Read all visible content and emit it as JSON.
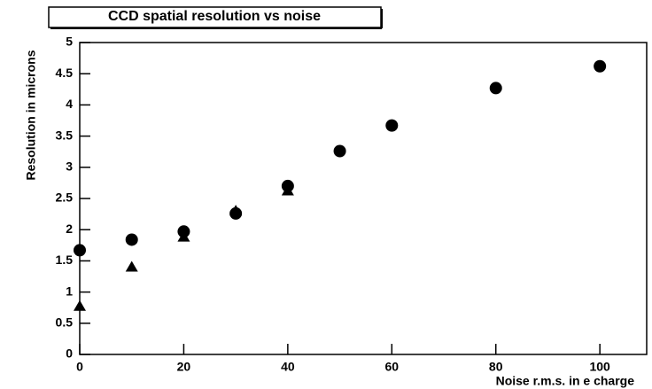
{
  "chart_data": {
    "type": "scatter",
    "title": "CCD spatial resolution vs noise",
    "x_label": "Noise r.m.s. in e charge",
    "y_label": "Resolution in microns",
    "xlim": [
      0,
      109
    ],
    "xticks": [
      0,
      20,
      40,
      60,
      80,
      100
    ],
    "ylim": [
      0,
      5
    ],
    "yticks": [
      0,
      0.5,
      1,
      1.5,
      2,
      2.5,
      3,
      3.5,
      4,
      4.5,
      5
    ],
    "series": [
      {
        "marker": "circle",
        "color": "#000000",
        "x": [
          0,
          10,
          20,
          30,
          40,
          50,
          60,
          80,
          100
        ],
        "values": [
          1.67,
          1.84,
          1.97,
          2.26,
          2.7,
          3.26,
          3.67,
          4.27,
          4.62
        ]
      },
      {
        "marker": "triangle",
        "color": "#000000",
        "x": [
          0,
          10,
          20,
          30,
          40
        ],
        "values": [
          0.77,
          1.4,
          1.88,
          2.3,
          2.62
        ]
      }
    ]
  }
}
